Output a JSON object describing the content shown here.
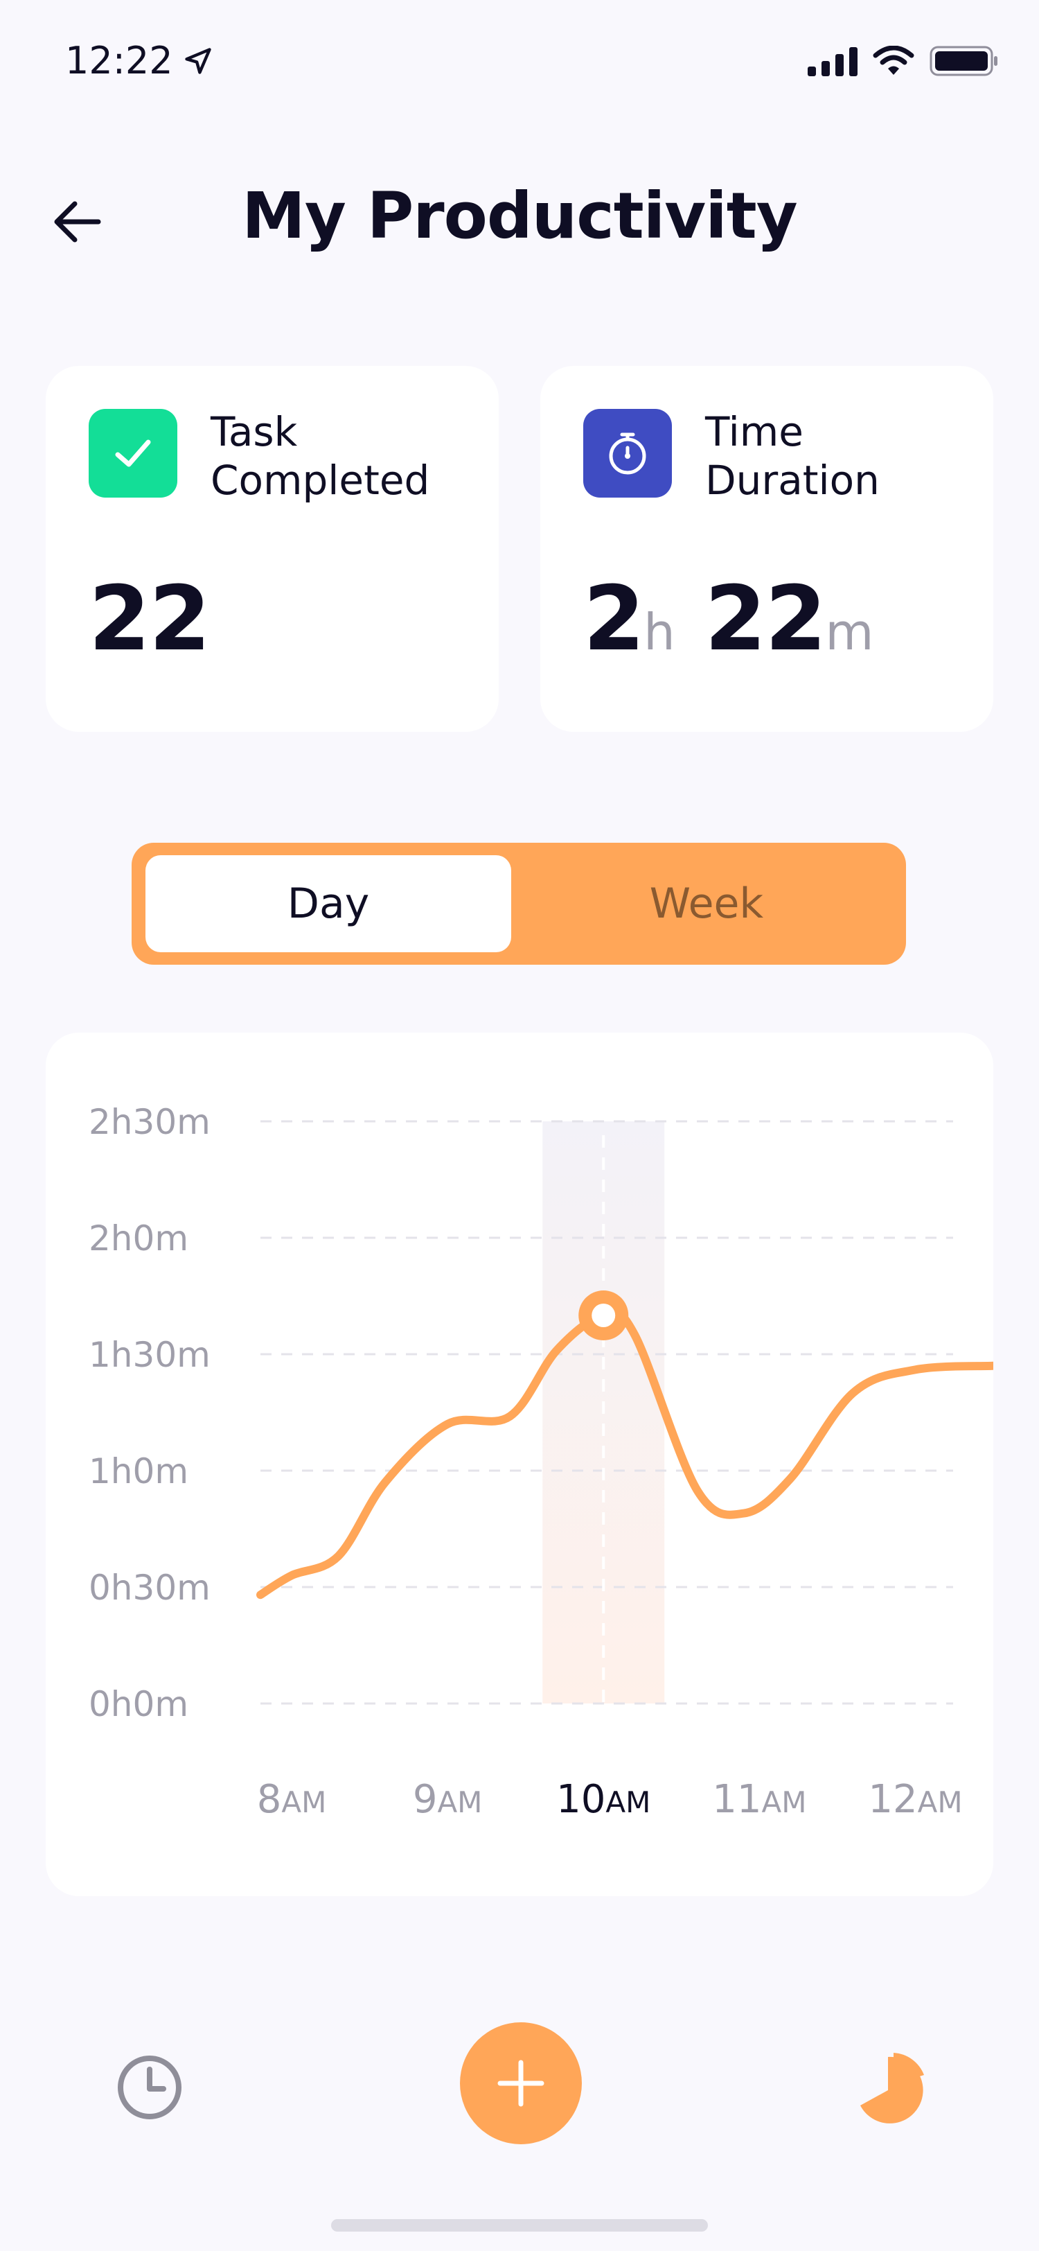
{
  "status_bar": {
    "time": "12:22"
  },
  "header": {
    "title": "My Productivity"
  },
  "stats": {
    "tasks": {
      "label": "Task Completed",
      "value": "22"
    },
    "duration": {
      "label": "Time Duration",
      "hours": "2",
      "hours_unit": "h",
      "minutes": "22",
      "minutes_unit": "m"
    }
  },
  "segment": {
    "options": [
      "Day",
      "Week"
    ],
    "selected": "Day"
  },
  "colors": {
    "accent": "#FFA658",
    "task_icon_bg": "#13DE97",
    "duration_icon_bg": "#3F4CC2",
    "background": "#F9F8FD"
  },
  "icons": {
    "back": "arrow-left-icon",
    "task": "check-icon",
    "duration": "stopwatch-icon",
    "nav_left": "clock-icon",
    "nav_center": "plus-icon",
    "nav_right": "pie-chart-icon"
  },
  "chart_data": {
    "type": "line",
    "ylim": [
      0,
      150
    ],
    "y_ticks": [
      {
        "value": 0,
        "label": "0h0m"
      },
      {
        "value": 30,
        "label": "0h30m"
      },
      {
        "value": 60,
        "label": "1h0m"
      },
      {
        "value": 90,
        "label": "1h30m"
      },
      {
        "value": 120,
        "label": "2h0m"
      },
      {
        "value": 150,
        "label": "2h30m"
      }
    ],
    "x_ticks": [
      {
        "value": 8,
        "num": "8",
        "suffix": "AM"
      },
      {
        "value": 9,
        "num": "9",
        "suffix": "AM"
      },
      {
        "value": 10,
        "num": "10",
        "suffix": "AM"
      },
      {
        "value": 11,
        "num": "11",
        "suffix": "AM"
      },
      {
        "value": 12,
        "num": "12",
        "suffix": "AM"
      }
    ],
    "xlim": [
      7.8,
      12.5
    ],
    "series": [
      {
        "x": [
          7.8,
          8.0,
          8.3,
          8.6,
          9.0,
          9.4,
          9.7,
          10.0,
          10.2,
          10.6,
          10.9,
          11.2,
          11.6,
          12.0,
          12.5
        ],
        "y": [
          28,
          33,
          38,
          57,
          72,
          74,
          91,
          100,
          95,
          55,
          49,
          58,
          80,
          86,
          87
        ]
      }
    ],
    "highlight": {
      "x": 10.0,
      "y": 100
    },
    "grid": true
  }
}
